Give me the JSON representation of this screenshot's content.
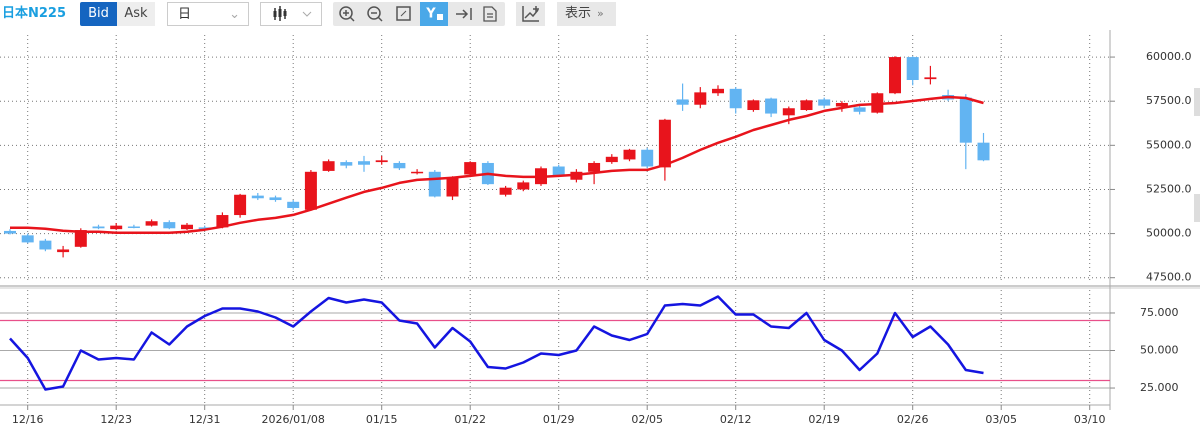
{
  "toolbar": {
    "symbol": "日本N225",
    "bid": "Bid",
    "ask": "Ask",
    "period": "日",
    "display": "表示"
  },
  "chart_data": [
    {
      "type": "candlestick",
      "up_color": "#e8141c",
      "down_color": "#62b4f2",
      "open": [
        50150,
        49900,
        49600,
        48950,
        49250,
        50400,
        50250,
        50400,
        50450,
        50650,
        50250,
        50350,
        50350,
        51050,
        52150,
        52050,
        51800,
        51350,
        53550,
        54050,
        54100,
        54050,
        54000,
        53450,
        53500,
        52100,
        53350,
        54000,
        52200,
        52500,
        52800,
        53800,
        53050,
        53500,
        54050,
        54200,
        54750,
        53750,
        57600,
        57300,
        57950,
        58200,
        57000,
        57650,
        56700,
        57000,
        57600,
        57200,
        57150,
        56850,
        57950,
        60000,
        58750,
        57850,
        57700,
        55150,
        null,
        null,
        null,
        null,
        null,
        null
      ],
      "high": [
        50250,
        50000,
        49700,
        49300,
        50300,
        50500,
        50600,
        50500,
        50800,
        50750,
        50600,
        50450,
        51200,
        52250,
        52300,
        52150,
        51900,
        53600,
        54200,
        54150,
        54400,
        54400,
        54100,
        53650,
        53600,
        53250,
        54100,
        54100,
        52700,
        53000,
        53800,
        53900,
        53650,
        54100,
        54500,
        54800,
        54850,
        56500,
        58500,
        58300,
        58400,
        58300,
        57600,
        57700,
        57200,
        57600,
        57700,
        57500,
        57300,
        58000,
        60050,
        60050,
        59500,
        58150,
        57900,
        55700,
        null,
        null,
        null,
        null,
        null,
        null
      ],
      "low": [
        49950,
        49450,
        49000,
        48650,
        49200,
        50250,
        50200,
        50300,
        50400,
        50250,
        50200,
        50200,
        50300,
        50900,
        51900,
        51800,
        51350,
        51300,
        53500,
        53700,
        53500,
        53900,
        53600,
        53350,
        52050,
        51900,
        53200,
        52750,
        52100,
        52400,
        52700,
        53200,
        52900,
        52800,
        53950,
        54100,
        53700,
        53000,
        56950,
        57100,
        57800,
        56800,
        56900,
        56600,
        56200,
        56950,
        57100,
        56900,
        56750,
        56800,
        57900,
        58400,
        58450,
        57500,
        53650,
        54100,
        null,
        null,
        null,
        null,
        null,
        null
      ],
      "close": [
        50000,
        49500,
        49100,
        49100,
        50200,
        50300,
        50450,
        50350,
        50700,
        50300,
        50500,
        50250,
        51050,
        52200,
        52000,
        51900,
        51450,
        53500,
        54100,
        53850,
        53900,
        54150,
        53700,
        53500,
        52100,
        53150,
        54050,
        52800,
        52600,
        52900,
        53700,
        53300,
        53500,
        54000,
        54350,
        54750,
        53800,
        56450,
        57300,
        58000,
        58200,
        57100,
        57550,
        56800,
        57100,
        57550,
        57250,
        57400,
        56900,
        57950,
        60000,
        58700,
        58850,
        57600,
        55150,
        54150,
        null,
        null,
        null,
        null,
        null,
        null
      ],
      "ma": {
        "color": "#e8141c",
        "values": [
          50330,
          50330,
          50270,
          50160,
          50100,
          50100,
          50050,
          50050,
          50050,
          50050,
          50100,
          50220,
          50390,
          50610,
          50780,
          50890,
          51060,
          51350,
          51690,
          52030,
          52360,
          52590,
          52870,
          53040,
          53100,
          53160,
          53270,
          53380,
          53270,
          53210,
          53210,
          53270,
          53330,
          53440,
          53550,
          53610,
          53610,
          53890,
          54290,
          54740,
          55140,
          55480,
          55870,
          56150,
          56440,
          56660,
          56950,
          57120,
          57290,
          57340,
          57400,
          57510,
          57630,
          57740,
          57680,
          57400,
          null,
          null,
          null,
          null,
          null,
          null
        ]
      },
      "ylim": [
        47200,
        61250
      ],
      "yticks": [
        {
          "value": 47500,
          "label": "47500.0"
        },
        {
          "value": 50000,
          "label": "50000.0"
        },
        {
          "value": 52500,
          "label": "52500.0"
        },
        {
          "value": 55000,
          "label": "55000.0"
        },
        {
          "value": 57500,
          "label": "57500.0"
        },
        {
          "value": 60000,
          "label": "60000.0"
        }
      ],
      "grid": true
    },
    {
      "type": "line",
      "categories": [
        null,
        "12/16",
        null,
        null,
        null,
        null,
        "12/23",
        null,
        null,
        null,
        null,
        "12/31",
        null,
        null,
        null,
        null,
        "2026/01/08",
        null,
        null,
        null,
        null,
        "01/15",
        null,
        null,
        null,
        null,
        "01/22",
        null,
        null,
        null,
        null,
        "01/29",
        null,
        null,
        null,
        null,
        "02/05",
        null,
        null,
        null,
        null,
        "02/12",
        null,
        null,
        null,
        null,
        "02/19",
        null,
        null,
        null,
        null,
        "02/26",
        null,
        null,
        null,
        null,
        "03/05",
        null,
        null,
        null,
        null,
        "03/10"
      ],
      "series": [
        {
          "color": "#1515e0",
          "values": [
            58,
            45,
            24,
            26,
            50,
            44,
            45,
            44,
            62,
            54,
            66,
            73,
            78,
            78,
            76,
            72,
            66,
            76,
            85,
            82,
            84,
            82,
            70,
            68,
            52,
            65,
            56,
            39,
            38,
            42,
            48,
            47,
            50,
            66,
            60,
            57,
            61,
            80,
            81,
            80,
            86,
            74,
            74,
            66,
            65,
            75,
            57,
            50,
            37,
            48,
            75,
            59,
            66,
            54,
            37,
            35,
            null,
            null,
            null,
            null,
            null,
            null
          ]
        }
      ],
      "levels": [
        30,
        70
      ],
      "level_color": "#e8508a",
      "ylim": [
        13.7,
        90.3
      ],
      "yticks": [
        {
          "value": 25,
          "label": "25.000"
        },
        {
          "value": 50,
          "label": "50.000"
        },
        {
          "value": 75,
          "label": "75.000"
        }
      ],
      "grid": true
    }
  ]
}
